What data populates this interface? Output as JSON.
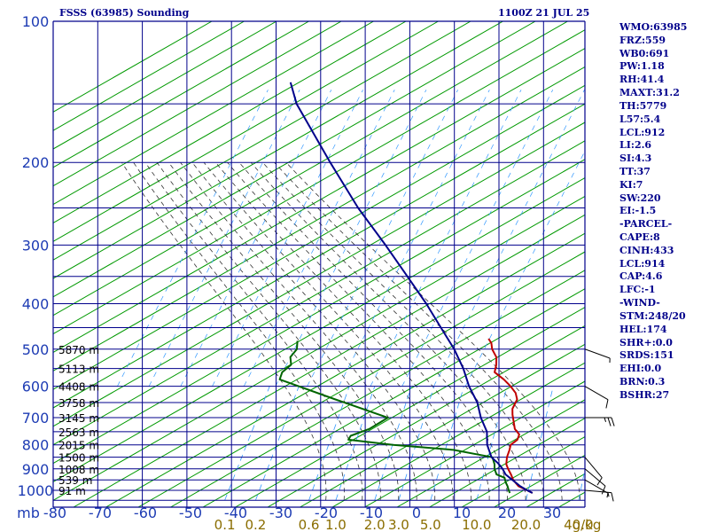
{
  "chart_data": {
    "type": "skew-t",
    "title": "FSSS (63985) Sounding",
    "datetime": "1100Z 21 JUL 25",
    "axes": {
      "pressure_unit": "mb",
      "pressure_ticks": [
        "100",
        "200",
        "300",
        "400",
        "500",
        "600",
        "700",
        "800",
        "900",
        "1000"
      ],
      "pressure_range": [
        100,
        1050
      ],
      "pressure_scale": "log",
      "temperature_ticks": [
        "-80",
        "-70",
        "-60",
        "-50",
        "-40",
        "-30",
        "-20",
        "-10",
        "0",
        "10",
        "20",
        "30"
      ],
      "mixing_ratio_unit": "g/kg",
      "mixing_ratio_ticks": [
        0.1,
        0.2,
        0.6,
        1.0,
        2.0,
        3.0,
        5.0,
        10.0,
        20.0,
        40.0
      ],
      "mixing_ratio_labels": [
        "0.1",
        "0.2",
        "0.6",
        "1.0",
        "2.0",
        "3.0",
        "5.0",
        "10.0",
        "20.0",
        "40.0"
      ]
    },
    "heights": [
      {
        "p": 500,
        "label": "5870 m"
      },
      {
        "p": 550,
        "label": "5113 m"
      },
      {
        "p": 600,
        "label": "4408 m"
      },
      {
        "p": 650,
        "label": "3758 m"
      },
      {
        "p": 700,
        "label": "3145 m"
      },
      {
        "p": 750,
        "label": "2563 m"
      },
      {
        "p": 800,
        "label": "2015 m"
      },
      {
        "p": 850,
        "label": "1500 m"
      },
      {
        "p": 900,
        "label": "1008 m"
      },
      {
        "p": 950,
        "label": "539 m"
      },
      {
        "p": 1000,
        "label": "91 m"
      }
    ],
    "series": [
      {
        "color": "#c00000",
        "points": [
          [
            1013,
            26
          ],
          [
            1000,
            24.5
          ],
          [
            980,
            22
          ],
          [
            950,
            20
          ],
          [
            925,
            18.8
          ],
          [
            900,
            17.4
          ],
          [
            880,
            16.4
          ],
          [
            850,
            15.6
          ],
          [
            820,
            15.2
          ],
          [
            800,
            14.8
          ],
          [
            780,
            15.6
          ],
          [
            760,
            15.3
          ],
          [
            740,
            13.6
          ],
          [
            710,
            12.2
          ],
          [
            690,
            11.2
          ],
          [
            670,
            10.4
          ],
          [
            640,
            10.2
          ],
          [
            620,
            9.0
          ],
          [
            600,
            7.0
          ],
          [
            580,
            4.6
          ],
          [
            560,
            1.6
          ],
          [
            540,
            1.0
          ],
          [
            520,
            0.0
          ],
          [
            500,
            -2.0
          ],
          [
            485,
            -3.0
          ],
          [
            475,
            -4.2
          ]
        ]
      },
      {
        "color": "#006400",
        "points": [
          [
            1013,
            21
          ],
          [
            1000,
            20.4
          ],
          [
            980,
            19.6
          ],
          [
            960,
            18.6
          ],
          [
            940,
            17.8
          ],
          [
            925,
            15.6
          ],
          [
            900,
            14.4
          ],
          [
            880,
            13.8
          ],
          [
            850,
            12.4
          ],
          [
            820,
            2.8
          ],
          [
            800,
            -11.2
          ],
          [
            780,
            -21.8
          ],
          [
            765,
            -21.8
          ],
          [
            740,
            -18.6
          ],
          [
            700,
            -16.0
          ],
          [
            640,
            -30.0
          ],
          [
            580,
            -45.0
          ],
          [
            560,
            -45.4
          ],
          [
            540,
            -44.4
          ],
          [
            520,
            -45.6
          ],
          [
            500,
            -45.2
          ],
          [
            480,
            -46.2
          ]
        ]
      },
      {
        "color": "#00008b",
        "points": [
          [
            1013,
            26
          ],
          [
            1000,
            24.5
          ],
          [
            980,
            22.4
          ],
          [
            950,
            19.8
          ],
          [
            925,
            17.6
          ],
          [
            900,
            16.2
          ],
          [
            875,
            14.4
          ],
          [
            850,
            12.2
          ],
          [
            800,
            9.6
          ],
          [
            750,
            7.8
          ],
          [
            700,
            4.6
          ],
          [
            650,
            1.8
          ],
          [
            600,
            -2.2
          ],
          [
            550,
            -5.8
          ],
          [
            500,
            -10.4
          ],
          [
            450,
            -16.2
          ],
          [
            400,
            -22.6
          ],
          [
            350,
            -30.4
          ],
          [
            300,
            -39.4
          ],
          [
            250,
            -50.4
          ],
          [
            200,
            -62.6
          ],
          [
            150,
            -77.8
          ],
          [
            135,
            -82
          ]
        ]
      }
    ],
    "winds": [
      {
        "p": 1000,
        "dir": 95,
        "speed": 15
      },
      {
        "p": 950,
        "dir": 120,
        "speed": 5
      },
      {
        "p": 900,
        "dir": 130,
        "speed": 10
      },
      {
        "p": 850,
        "dir": 140,
        "speed": 10
      },
      {
        "p": 700,
        "dir": 90,
        "speed": 25
      },
      {
        "p": 600,
        "dir": 120,
        "speed": 10
      },
      {
        "p": 500,
        "dir": 110,
        "speed": 5
      }
    ],
    "indices": [
      "WMO:63985",
      "FRZ:559",
      "WB0:691",
      "PW:1.18",
      "RH:41.4",
      "MAXT:31.2",
      "TH:5779",
      "L57:5.4",
      "LCL:912",
      "LI:2.6",
      "SI:4.3",
      "TT:37",
      "KI:7",
      "SW:220",
      "EI:-1.5",
      "-PARCEL-",
      "CAPE:8",
      "CINH:433",
      "LCL:914",
      "CAP:4.6",
      "LFC:-1",
      "-WIND-",
      "STM:248/20",
      "HEL:174",
      "SHR+:0.0",
      "SRDS:151",
      "EHI:0.0",
      "BRN:0.3",
      "BSHR:27"
    ],
    "grid": true
  },
  "colors": {
    "isobar": "#00008b",
    "dry_adiabat": "#009900",
    "moist_adiabat": "#333333",
    "mixing_ratio": "#3399ff",
    "axis_text": "#1e3cb4",
    "mixing_text": "#8a6d00"
  }
}
